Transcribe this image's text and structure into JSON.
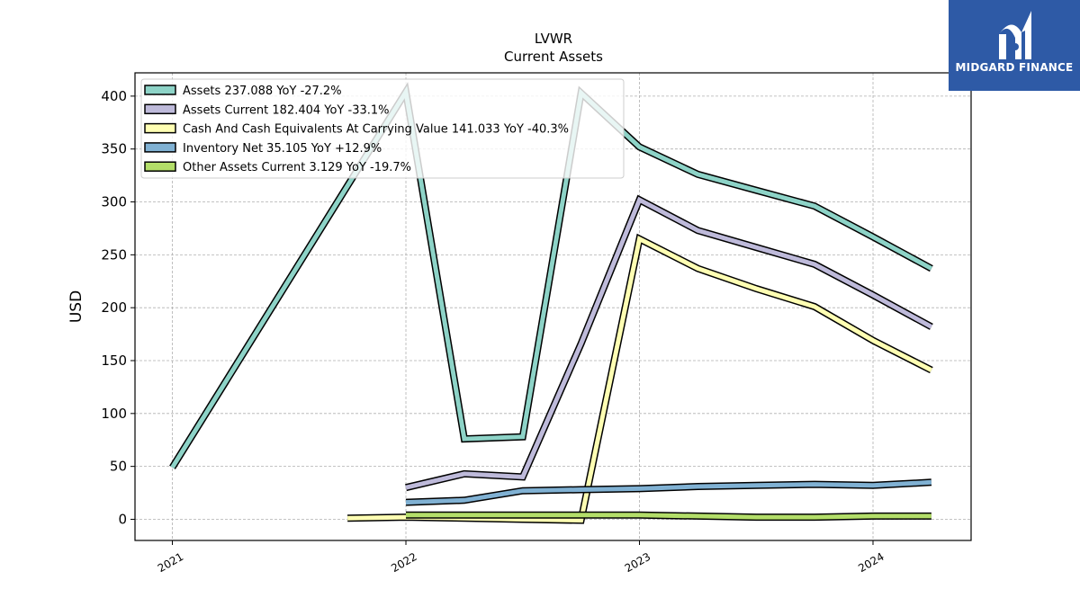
{
  "chart_data": {
    "type": "line",
    "title": "LVWR",
    "subtitle": "Current  Assets",
    "ylabel": "USD",
    "xlabel": "",
    "ylim": [
      -20,
      422
    ],
    "xlim": [
      2020.84,
      2024.42
    ],
    "grid": true,
    "legend_placement": "top-left",
    "xticks": [
      {
        "value": 2021.0,
        "label": "2021"
      },
      {
        "value": 2022.0,
        "label": "2022"
      },
      {
        "value": 2023.0,
        "label": "2023"
      },
      {
        "value": 2024.0,
        "label": "2024"
      }
    ],
    "yticks": [
      {
        "value": 0,
        "label": "0"
      },
      {
        "value": 50,
        "label": "50"
      },
      {
        "value": 100,
        "label": "100"
      },
      {
        "value": 150,
        "label": "150"
      },
      {
        "value": 200,
        "label": "200"
      },
      {
        "value": 250,
        "label": "250"
      },
      {
        "value": 300,
        "label": "300"
      },
      {
        "value": 350,
        "label": "350"
      },
      {
        "value": 400,
        "label": "400"
      }
    ],
    "series": [
      {
        "name": "Assets  237.088 YoY -27.2%",
        "color": "#8dd3c7",
        "points": [
          [
            2021.0,
            49
          ],
          [
            2022.0,
            404
          ],
          [
            2022.25,
            76
          ],
          [
            2022.5,
            78
          ],
          [
            2022.75,
            403
          ],
          [
            2023.0,
            352
          ],
          [
            2023.25,
            326
          ],
          [
            2023.5,
            311
          ],
          [
            2023.75,
            296
          ],
          [
            2024.0,
            267
          ],
          [
            2024.25,
            237
          ]
        ]
      },
      {
        "name": "Assets Current  182.404 YoY -33.1%",
        "color": "#bebada",
        "points": [
          [
            2022.0,
            30
          ],
          [
            2022.25,
            43
          ],
          [
            2022.5,
            40
          ],
          [
            2022.75,
            166
          ],
          [
            2023.0,
            302
          ],
          [
            2023.25,
            273
          ],
          [
            2023.5,
            257
          ],
          [
            2023.75,
            241
          ],
          [
            2024.0,
            212
          ],
          [
            2024.25,
            182
          ]
        ]
      },
      {
        "name": "Cash And Cash Equivalents At Carrying Value  141.033 YoY -40.3%",
        "color": "#ffffb3",
        "points": [
          [
            2021.75,
            1
          ],
          [
            2022.0,
            2
          ],
          [
            2022.25,
            1
          ],
          [
            2022.5,
            0
          ],
          [
            2022.75,
            -1
          ],
          [
            2023.0,
            265
          ],
          [
            2023.25,
            237
          ],
          [
            2023.5,
            218
          ],
          [
            2023.75,
            201
          ],
          [
            2024.0,
            169
          ],
          [
            2024.25,
            141
          ]
        ]
      },
      {
        "name": "Inventory Net  35.105 YoY +12.9%",
        "color": "#80b1d3",
        "points": [
          [
            2022.0,
            16
          ],
          [
            2022.25,
            18
          ],
          [
            2022.5,
            27
          ],
          [
            2022.75,
            28
          ],
          [
            2023.0,
            29
          ],
          [
            2023.25,
            31
          ],
          [
            2023.5,
            32
          ],
          [
            2023.75,
            33
          ],
          [
            2024.0,
            32
          ],
          [
            2024.25,
            35
          ]
        ]
      },
      {
        "name": "Other Assets Current  3.129 YoY -19.7%",
        "color": "#b3de69",
        "points": [
          [
            2022.0,
            4
          ],
          [
            2022.25,
            4
          ],
          [
            2022.5,
            4
          ],
          [
            2022.75,
            4
          ],
          [
            2023.0,
            4
          ],
          [
            2023.25,
            3
          ],
          [
            2023.5,
            2
          ],
          [
            2023.75,
            2
          ],
          [
            2024.0,
            3
          ],
          [
            2024.25,
            3
          ]
        ]
      }
    ]
  },
  "logo": {
    "text": "MIDGARD FINANCE",
    "background": "#2e5aa6"
  }
}
